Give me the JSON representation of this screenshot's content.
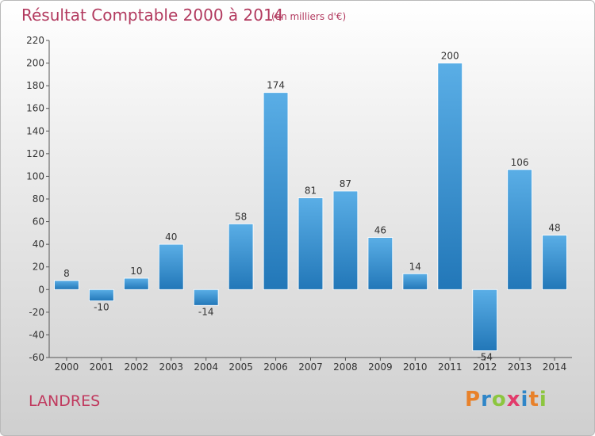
{
  "header": {
    "title": "Résultat Comptable 2000 à 2014",
    "subtitle": "(en milliers d'€)"
  },
  "footer": {
    "place": "LANDRES",
    "logo_text": "Proxiti"
  },
  "colors": {
    "bar_top": "#5aaee6",
    "bar_bottom": "#2277b8",
    "axis": "#555555",
    "title": "#b23a5f",
    "logo_letters": [
      "#e8812a",
      "#2f86c8",
      "#8cc63f",
      "#e23b6b",
      "#2f86c8",
      "#e8812a",
      "#8cc63f"
    ]
  },
  "chart_data": {
    "type": "bar",
    "categories": [
      "2000",
      "2001",
      "2002",
      "2003",
      "2004",
      "2005",
      "2006",
      "2007",
      "2008",
      "2009",
      "2010",
      "2011",
      "2012",
      "2013",
      "2014"
    ],
    "values": [
      8,
      -10,
      10,
      40,
      -14,
      58,
      174,
      81,
      87,
      46,
      14,
      200,
      -54,
      106,
      48
    ],
    "value_labels": [
      "8",
      "-10",
      "10",
      "40",
      "-14",
      "58",
      "174",
      "81",
      "87",
      "46",
      "14",
      "200",
      "-54",
      "106",
      "48"
    ],
    "ylim": [
      -60,
      220
    ],
    "yticks": [
      -60,
      -40,
      -20,
      0,
      20,
      40,
      60,
      80,
      100,
      120,
      140,
      160,
      180,
      200,
      220
    ],
    "ytick_labels": [
      "-60",
      "-40",
      "-20",
      "0",
      "20",
      "40",
      "60",
      "80",
      "100",
      "120",
      "140",
      "160",
      "180",
      "200",
      "220"
    ],
    "grid": false
  }
}
